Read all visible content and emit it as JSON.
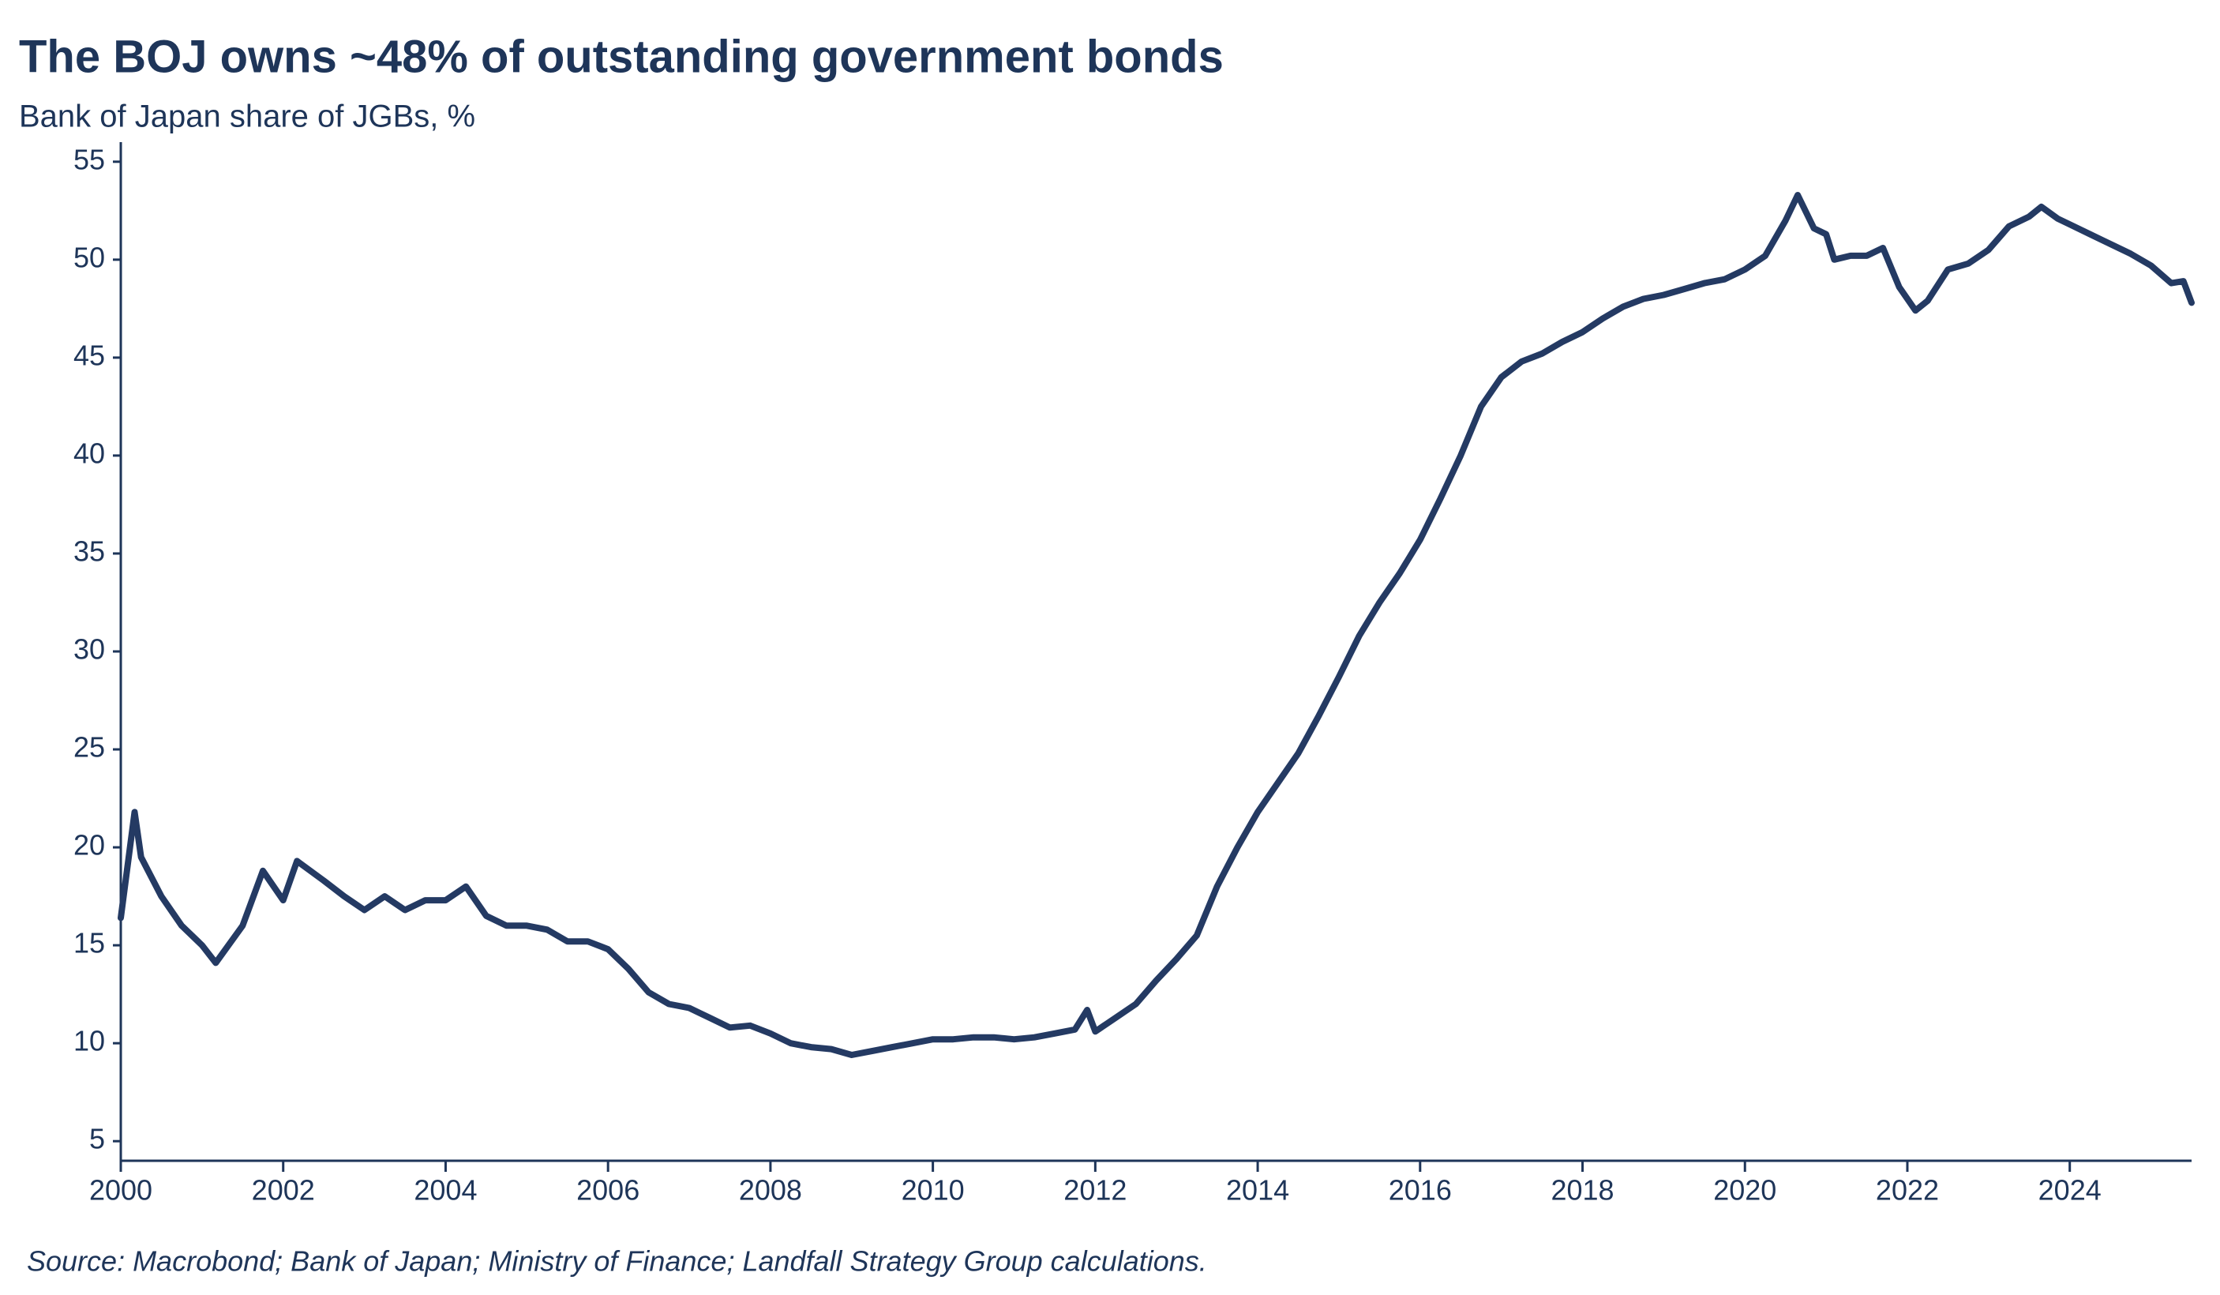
{
  "chart_data": {
    "type": "line",
    "title": "The BOJ owns ~48% of outstanding government bonds",
    "subtitle": "Bank of Japan share of JGBs, %",
    "source": "Source: Macrobond; Bank of Japan; Ministry of Finance; Landfall Strategy Group calculations.",
    "x": [
      2000.0,
      2000.17,
      2000.25,
      2000.5,
      2000.75,
      2001.0,
      2001.17,
      2001.5,
      2001.75,
      2002.0,
      2002.17,
      2002.5,
      2002.75,
      2003.0,
      2003.25,
      2003.5,
      2003.75,
      2004.0,
      2004.25,
      2004.5,
      2004.75,
      2005.0,
      2005.25,
      2005.5,
      2005.75,
      2006.0,
      2006.25,
      2006.5,
      2006.75,
      2007.0,
      2007.25,
      2007.5,
      2007.75,
      2008.0,
      2008.25,
      2008.5,
      2008.75,
      2009.0,
      2009.25,
      2009.5,
      2009.75,
      2010.0,
      2010.25,
      2010.5,
      2010.75,
      2011.0,
      2011.25,
      2011.5,
      2011.75,
      2011.9,
      2012.0,
      2012.25,
      2012.5,
      2012.75,
      2013.0,
      2013.25,
      2013.5,
      2013.75,
      2014.0,
      2014.25,
      2014.5,
      2014.75,
      2015.0,
      2015.25,
      2015.5,
      2015.75,
      2016.0,
      2016.25,
      2016.5,
      2016.75,
      2017.0,
      2017.25,
      2017.5,
      2017.75,
      2018.0,
      2018.25,
      2018.5,
      2018.75,
      2019.0,
      2019.25,
      2019.5,
      2019.75,
      2020.0,
      2020.25,
      2020.5,
      2020.65,
      2020.85,
      2021.0,
      2021.1,
      2021.3,
      2021.5,
      2021.7,
      2021.9,
      2022.1,
      2022.25,
      2022.5,
      2022.75,
      2023.0,
      2023.25,
      2023.5,
      2023.65,
      2023.85,
      2024.0,
      2024.25,
      2024.5,
      2024.75,
      2025.0,
      2025.25,
      2025.4,
      2025.5
    ],
    "series": [
      {
        "name": "Bank of Japan share of JGBs",
        "color": "#243a63",
        "values": [
          16.4,
          21.8,
          19.5,
          17.5,
          16.0,
          15.0,
          14.1,
          16.0,
          18.8,
          17.3,
          19.3,
          18.3,
          17.5,
          16.8,
          17.5,
          16.8,
          17.3,
          17.3,
          18.0,
          16.5,
          16.0,
          16.0,
          15.8,
          15.2,
          15.2,
          14.8,
          13.8,
          12.6,
          12.0,
          11.8,
          11.3,
          10.8,
          10.9,
          10.5,
          10.0,
          9.8,
          9.7,
          9.4,
          9.6,
          9.8,
          10.0,
          10.2,
          10.2,
          10.3,
          10.3,
          10.2,
          10.3,
          10.5,
          10.7,
          11.7,
          10.6,
          11.3,
          12.0,
          13.2,
          14.3,
          15.5,
          18.0,
          20.0,
          21.8,
          23.3,
          24.8,
          26.7,
          28.7,
          30.8,
          32.5,
          34.0,
          35.7,
          37.8,
          40.0,
          42.5,
          44.0,
          44.8,
          45.2,
          45.8,
          46.3,
          47.0,
          47.6,
          48.0,
          48.2,
          48.5,
          48.8,
          49.0,
          49.5,
          50.2,
          52.0,
          53.3,
          51.6,
          51.3,
          50.0,
          50.2,
          50.2,
          50.6,
          48.6,
          47.4,
          47.9,
          49.5,
          49.8,
          50.5,
          51.7,
          52.2,
          52.7,
          52.1,
          51.8,
          51.3,
          50.8,
          50.3,
          49.7,
          48.8,
          48.9,
          47.8
        ]
      }
    ],
    "xlim": [
      2000,
      2025.5
    ],
    "xticks": [
      2000,
      2002,
      2004,
      2006,
      2008,
      2010,
      2012,
      2014,
      2016,
      2018,
      2020,
      2022,
      2024
    ],
    "ylim": [
      4,
      56
    ],
    "yticks": [
      5,
      10,
      15,
      20,
      25,
      30,
      35,
      40,
      45,
      50,
      55
    ],
    "grid": false
  }
}
